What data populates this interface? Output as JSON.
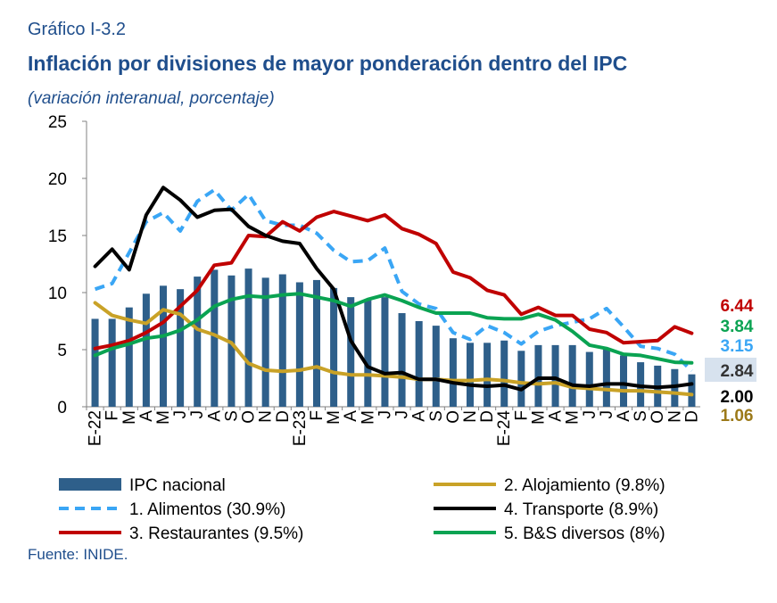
{
  "header": {
    "label": "Gráfico I-3.2",
    "title": "Inflación por divisiones de mayor ponderación dentro del IPC",
    "subtitle": "(variación interanual, porcentaje)"
  },
  "source": "Fuente: INIDE.",
  "chart_data": {
    "type": "bar",
    "ylim": [
      0,
      25
    ],
    "yticks": [
      0,
      5,
      10,
      15,
      20,
      25
    ],
    "categories": [
      "E-22",
      "F",
      "M",
      "A",
      "M",
      "J",
      "J",
      "A",
      "S",
      "O",
      "N",
      "D",
      "E-23",
      "F",
      "M",
      "A",
      "M",
      "J",
      "J",
      "A",
      "S",
      "O",
      "N",
      "D",
      "E-24",
      "F",
      "M",
      "A",
      "M",
      "J",
      "J",
      "A",
      "S",
      "O",
      "N",
      "D"
    ],
    "bars": {
      "name": "IPC nacional",
      "color": "#2e5f8a",
      "values": [
        7.7,
        7.7,
        8.7,
        9.9,
        10.6,
        10.3,
        11.4,
        12.0,
        11.5,
        12.1,
        11.3,
        11.6,
        10.9,
        11.1,
        10.4,
        9.6,
        9.4,
        9.6,
        8.2,
        7.5,
        7.1,
        6.0,
        5.6,
        5.6,
        5.8,
        4.9,
        5.4,
        5.4,
        5.4,
        4.8,
        5.0,
        4.5,
        3.9,
        3.6,
        3.3,
        2.84
      ]
    },
    "series": [
      {
        "name": "1. Alimentos (30.9%)",
        "color": "#3aa6f5",
        "dashed": true,
        "values": [
          10.3,
          10.8,
          13.5,
          16.2,
          17.0,
          15.4,
          18.0,
          19.0,
          17.2,
          18.6,
          16.3,
          15.9,
          15.9,
          15.2,
          13.7,
          12.7,
          12.8,
          13.9,
          10.1,
          9.0,
          8.6,
          6.5,
          5.9,
          7.1,
          6.5,
          5.5,
          6.6,
          7.1,
          7.4,
          7.7,
          8.6,
          7.0,
          5.3,
          5.1,
          4.6,
          3.15
        ]
      },
      {
        "name": "3. Restaurantes (9.5%)",
        "color": "#c00000",
        "values": [
          5.1,
          5.4,
          5.8,
          6.5,
          7.4,
          8.8,
          10.2,
          12.4,
          12.6,
          15.0,
          14.9,
          16.2,
          15.4,
          16.6,
          17.1,
          16.7,
          16.3,
          16.8,
          15.6,
          15.1,
          14.3,
          11.8,
          11.3,
          10.2,
          9.8,
          8.1,
          8.7,
          8.0,
          8.0,
          6.8,
          6.5,
          5.6,
          5.7,
          5.8,
          7.0,
          6.44
        ]
      },
      {
        "name": "2. Alojamiento (9.8%)",
        "color": "#c9a227",
        "values": [
          9.1,
          8.0,
          7.6,
          7.3,
          8.5,
          8.1,
          6.8,
          6.3,
          5.6,
          3.8,
          3.2,
          3.1,
          3.2,
          3.5,
          3.0,
          2.8,
          2.8,
          2.7,
          2.6,
          2.4,
          2.4,
          2.3,
          2.3,
          2.4,
          2.3,
          2.1,
          2.0,
          2.1,
          1.7,
          1.6,
          1.5,
          1.4,
          1.4,
          1.3,
          1.2,
          1.06
        ]
      },
      {
        "name": "4. Transporte (8.9%)",
        "color": "#000000",
        "values": [
          12.3,
          13.8,
          12.0,
          16.8,
          19.2,
          18.1,
          16.6,
          17.2,
          17.3,
          15.8,
          15.0,
          14.5,
          14.3,
          12.1,
          10.3,
          5.8,
          3.5,
          2.9,
          3.0,
          2.4,
          2.4,
          2.1,
          1.9,
          1.8,
          1.9,
          1.5,
          2.5,
          2.5,
          1.9,
          1.8,
          2.0,
          2.0,
          1.8,
          1.7,
          1.8,
          2.0
        ]
      },
      {
        "name": "5. B&S diversos (8%)",
        "color": "#0aa352",
        "values": [
          4.5,
          5.1,
          5.5,
          6.0,
          6.2,
          6.7,
          7.6,
          8.8,
          9.4,
          9.7,
          9.6,
          9.8,
          9.9,
          9.6,
          9.3,
          8.8,
          9.4,
          9.8,
          9.3,
          8.7,
          8.2,
          8.2,
          8.2,
          7.8,
          7.7,
          7.7,
          8.1,
          7.6,
          6.6,
          5.4,
          5.1,
          4.6,
          4.5,
          4.2,
          3.9,
          3.84
        ]
      }
    ],
    "end_labels": [
      {
        "text": "6.44",
        "color": "#c00000"
      },
      {
        "text": "3.84",
        "color": "#0aa352"
      },
      {
        "text": "3.15",
        "color": "#3aa6f5"
      },
      {
        "text": "2.84",
        "color": "#333333",
        "boxed": true
      },
      {
        "text": "2.00",
        "color": "#000000"
      },
      {
        "text": "1.06",
        "color": "#9c7a1a"
      }
    ],
    "legend": [
      {
        "name": "IPC nacional",
        "kind": "bar",
        "color": "#2e5f8a"
      },
      {
        "name": "2. Alojamiento (9.8%)",
        "kind": "line",
        "color": "#c9a227"
      },
      {
        "name": "1. Alimentos (30.9%)",
        "kind": "dash",
        "color": "#3aa6f5"
      },
      {
        "name": "4. Transporte (8.9%)",
        "kind": "line",
        "color": "#000000"
      },
      {
        "name": "3. Restaurantes (9.5%)",
        "kind": "line",
        "color": "#c00000"
      },
      {
        "name": "5. B&S diversos (8%)",
        "kind": "line",
        "color": "#0aa352"
      }
    ]
  }
}
